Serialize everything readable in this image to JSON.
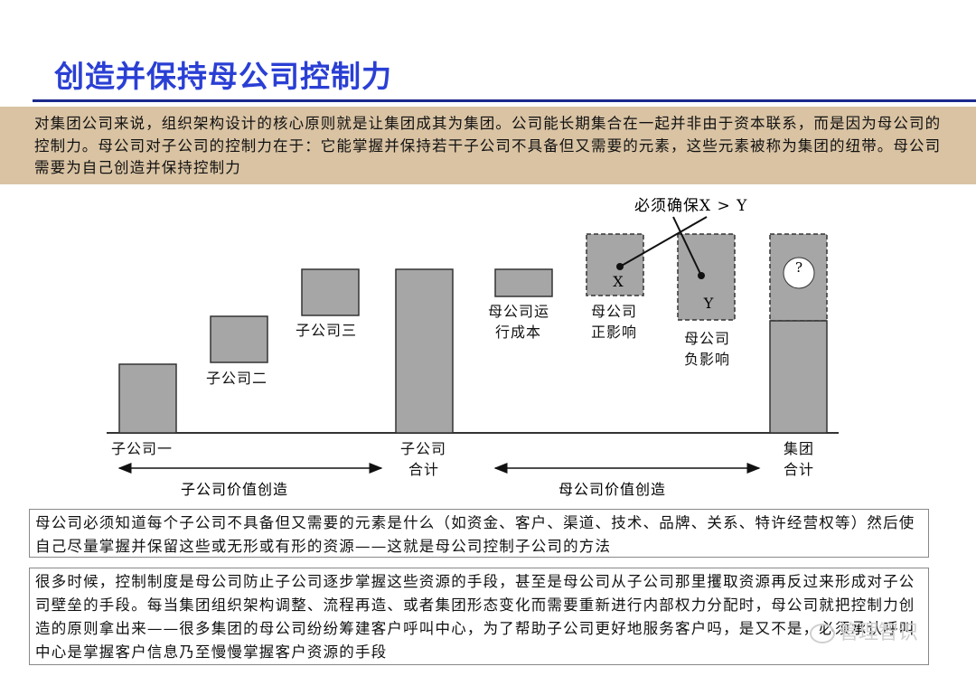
{
  "title": "创造并保持母公司控制力",
  "intro_text": "对集团公司来说，组织架构设计的核心原则就是让集团成其为集团。公司能长期集合在一起并非由于资本联系，而是因为母公司的控制力。母公司对子公司的控制力在于：它能掌握并保持若干子公司不具备但又需要的元素，这些元素被称为集团的纽带。母公司需要为自己创造并保持控制力",
  "diagram": {
    "annotation": "必须确保X > Y",
    "labels": {
      "sub1": "子公司一",
      "sub2": "子公司二",
      "sub3": "子公司三",
      "sub_total_l1": "子公司",
      "sub_total_l2": "合计",
      "op_cost_l1": "母公司运",
      "op_cost_l2": "行成本",
      "pos_l1": "母公司",
      "pos_l2": "正影响",
      "neg_l1": "母公司",
      "neg_l2": "负影响",
      "group_l1": "集团",
      "group_l2": "合计",
      "x": "X",
      "y": "Y",
      "question": "?",
      "sub_value": "子公司价值创造",
      "parent_value": "母公司价值创造"
    },
    "colors": {
      "bar": "#a6a6a6",
      "outline": "#333333"
    }
  },
  "box1_text": "母公司必须知道每个子公司不具备但又需要的元素是什么（如资金、客户、渠道、技术、品牌、关系、特许经营权等）然后使自己尽量掌握并保留这些或无形或有形的资源——这就是母公司控制子公司的方法",
  "box2_text": "很多时候，控制制度是母公司防止子公司逐步掌握这些资源的手段，甚至是母公司从子公司那里攫取资源再反过来形成对子公司壁垒的手段。每当集团组织架构调整、流程再造、或者集团形态变化而需要重新进行内部权力分配时，母公司就把控制力创造的原则拿出来——很多集团的母公司纷纷筹建客户呼叫中心，为了帮助子公司更好地服务客户吗，是又不是，必须承认呼叫中心是掌握客户信息乃至慢慢掌握客户资源的手段",
  "watermark": "管理智识"
}
